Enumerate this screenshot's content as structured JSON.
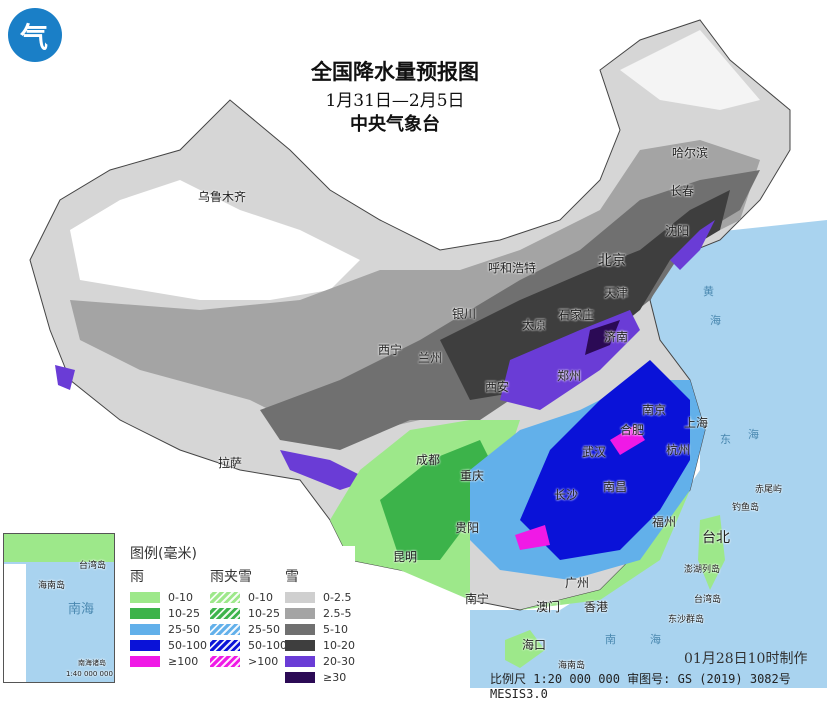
{
  "title": "全国降水量预报图",
  "period": "1月31日—2月5日",
  "issuer": "中央气象台",
  "logo_text": "气",
  "cities": [
    "乌鲁木齐",
    "哈尔滨",
    "长春",
    "沈阳",
    "北京",
    "呼和浩特",
    "天津",
    "银川",
    "太原",
    "石家庄",
    "济南",
    "西宁",
    "兰州",
    "郑州",
    "西安",
    "合肥",
    "南京",
    "上海",
    "杭州",
    "武汉",
    "成都",
    "重庆",
    "长沙",
    "南昌",
    "拉萨",
    "贵阳",
    "昆明",
    "福州",
    "台北",
    "南宁",
    "广州",
    "澳门",
    "香港",
    "海口"
  ],
  "seas": [
    "黄",
    "海",
    "东",
    "海",
    "南",
    "海"
  ],
  "islands": [
    "钓鱼岛",
    "赤尾屿",
    "澎湖列岛",
    "台湾岛",
    "东沙群岛",
    "海南岛"
  ],
  "legend": {
    "title": "图例(毫米)",
    "rain": {
      "label": "雨",
      "items": [
        {
          "range": "0-10",
          "color": "#9de88a"
        },
        {
          "range": "10-25",
          "color": "#3cb34a"
        },
        {
          "range": "25-50",
          "color": "#62b0ea"
        },
        {
          "range": "50-100",
          "color": "#0a12d8"
        },
        {
          "range": "≥100",
          "color": "#f019e6"
        }
      ]
    },
    "sleet": {
      "label": "雨夹雪",
      "items": [
        {
          "range": "0-10",
          "color": "#9de88a"
        },
        {
          "range": "10-25",
          "color": "#3cb34a"
        },
        {
          "range": "25-50",
          "color": "#62b0ea"
        },
        {
          "range": "50-100",
          "color": "#0a12d8"
        },
        {
          "range": ">100",
          "color": "#f019e6"
        }
      ]
    },
    "snow": {
      "label": "雪",
      "items": [
        {
          "range": "0-2.5",
          "color": "#cfcfcf"
        },
        {
          "range": "2.5-5",
          "color": "#a4a4a4"
        },
        {
          "range": "5-10",
          "color": "#707070"
        },
        {
          "range": "10-20",
          "color": "#3e3e3e"
        },
        {
          "range": "20-30",
          "color": "#6a3cd6"
        },
        {
          "range": "≥30",
          "color": "#2b0a55"
        }
      ]
    }
  },
  "inset": {
    "labels": [
      "台湾岛",
      "海南岛",
      "南海",
      "南海诸岛"
    ],
    "scale": "1:40 000 000"
  },
  "made": "01月28日10时制作",
  "footer": "比例尺 1:20 000 000  审图号: GS (2019) 3082号 MESIS3.0"
}
